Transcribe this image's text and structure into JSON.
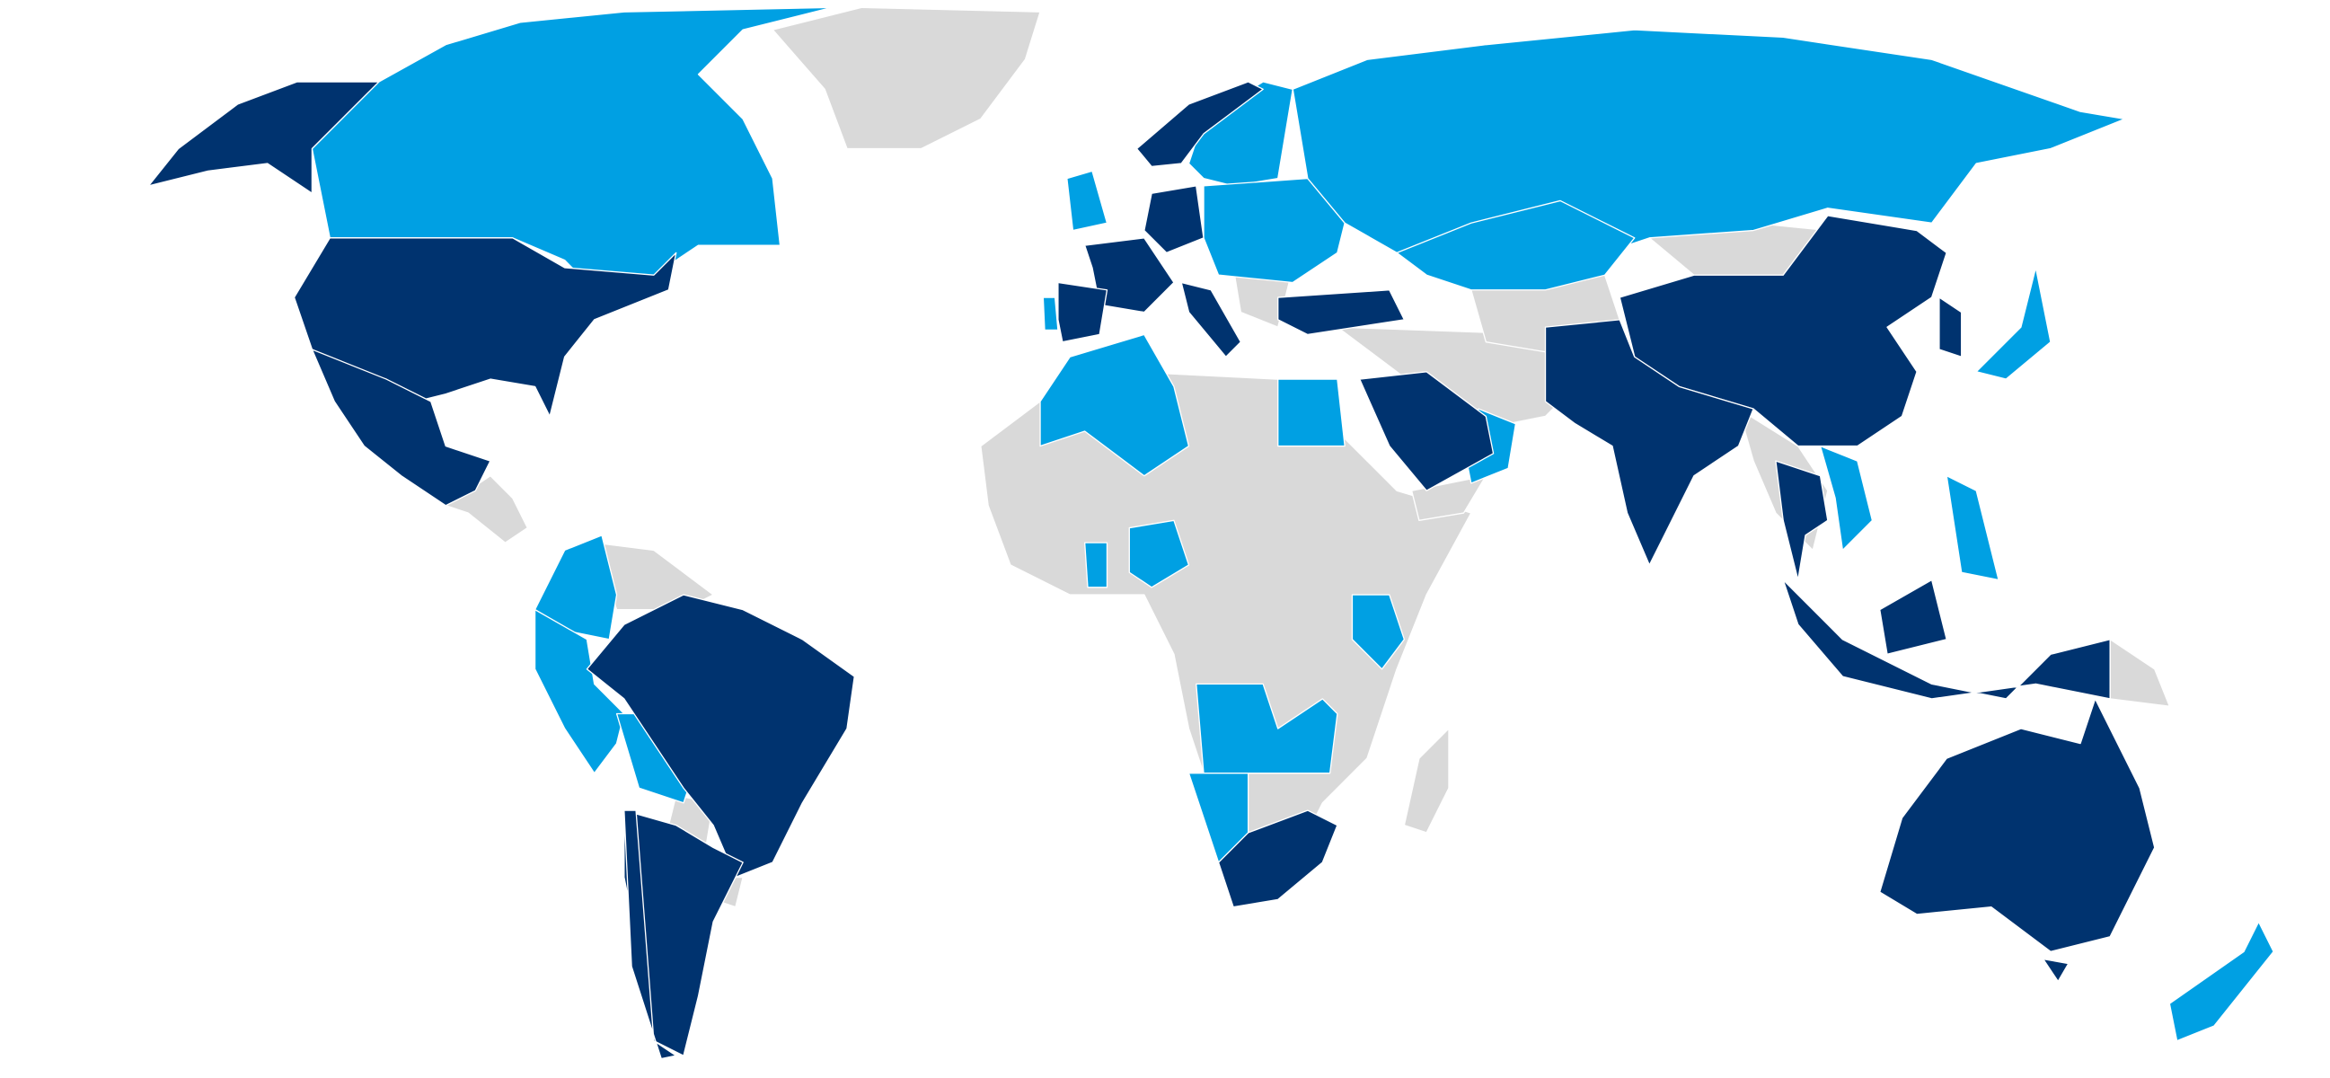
{
  "map": {
    "colors": {
      "background": "#ffffff",
      "dark": "#00336f",
      "light": "#00a0e3",
      "none": "#d9d9d9",
      "border": "#ffffff"
    }
  }
}
